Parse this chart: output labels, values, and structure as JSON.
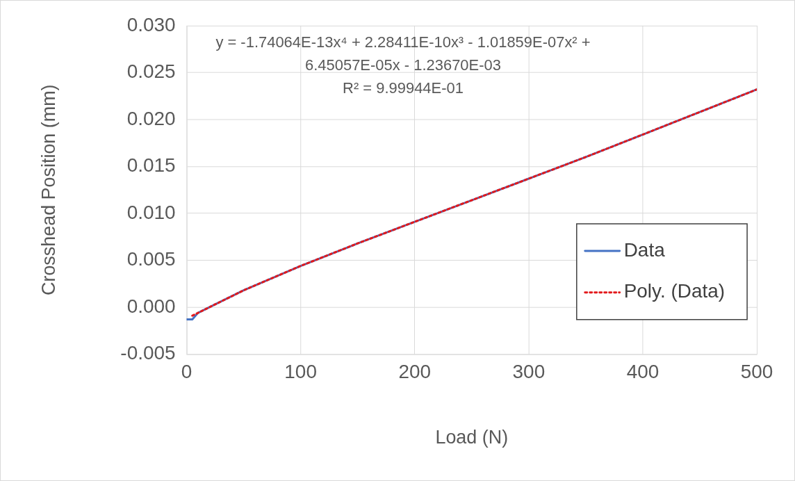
{
  "chart_data": {
    "type": "line",
    "xlabel": "Load (N)",
    "ylabel": "Crosshead Position (mm)",
    "xlim": [
      0,
      500
    ],
    "xticks": [
      0,
      100,
      200,
      300,
      400,
      500
    ],
    "ylim": [
      -0.005,
      0.03
    ],
    "yticks": [
      {
        "value": -0.005,
        "label": "-0.005"
      },
      {
        "value": 0,
        "label": "0.000"
      },
      {
        "value": 0.005,
        "label": "0.005"
      },
      {
        "value": 0.01,
        "label": "0.010"
      },
      {
        "value": 0.015,
        "label": "0.015"
      },
      {
        "value": 0.02,
        "label": "0.020"
      },
      {
        "value": 0.025,
        "label": "0.025"
      },
      {
        "value": 0.03,
        "label": "0.030"
      }
    ],
    "grid": true,
    "legend": "bottom right",
    "marker": "none",
    "annotations": [
      "y = -1.74064E-13x⁴ + 2.28411E-10x³ - 1.01859E-07x² +",
      "6.45057E-05x - 1.23670E-03",
      "R² = 9.99944E-01"
    ],
    "series": [
      {
        "name": "Data",
        "color": "#4472c4",
        "line_style": "solid",
        "x": [
          0,
          5,
          10,
          25,
          50,
          75,
          100,
          150,
          200,
          250,
          300,
          350,
          400,
          450,
          500
        ],
        "values": [
          -0.0013,
          -0.0013,
          -0.0006,
          0.0003,
          0.0018,
          0.0031,
          0.0044,
          0.0068,
          0.0091,
          0.0114,
          0.0137,
          0.016,
          0.0184,
          0.0208,
          0.0232
        ]
      },
      {
        "name": "Poly. (Data)",
        "color": "#e31a1c",
        "line_style": "dotted",
        "x": [
          5,
          10,
          25,
          50,
          75,
          100,
          150,
          200,
          250,
          300,
          350,
          400,
          450,
          500
        ],
        "values": [
          -0.0009,
          -0.0006,
          0.0003,
          0.0018,
          0.0031,
          0.0044,
          0.0068,
          0.0091,
          0.0114,
          0.0137,
          0.016,
          0.0184,
          0.0208,
          0.0232
        ]
      }
    ]
  }
}
